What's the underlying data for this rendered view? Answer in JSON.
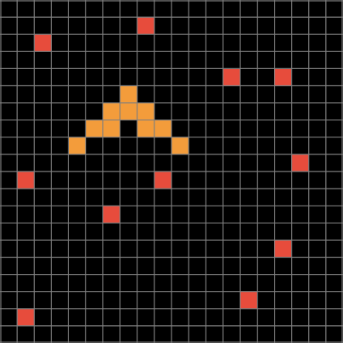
{
  "board": {
    "columns": 20,
    "rows": 20,
    "background_color": "#000000",
    "grid_line_color": "#7f7f7f",
    "colors": {
      "food": "#e74c3c",
      "player": "#f39c3b"
    }
  },
  "player_cells": [
    {
      "col": 7,
      "row": 5
    },
    {
      "col": 6,
      "row": 6
    },
    {
      "col": 7,
      "row": 6
    },
    {
      "col": 8,
      "row": 6
    },
    {
      "col": 5,
      "row": 7
    },
    {
      "col": 6,
      "row": 7
    },
    {
      "col": 8,
      "row": 7
    },
    {
      "col": 9,
      "row": 7
    },
    {
      "col": 4,
      "row": 8
    },
    {
      "col": 10,
      "row": 8
    }
  ],
  "food_cells": [
    {
      "col": 8,
      "row": 1
    },
    {
      "col": 2,
      "row": 2
    },
    {
      "col": 13,
      "row": 4
    },
    {
      "col": 16,
      "row": 4
    },
    {
      "col": 17,
      "row": 9
    },
    {
      "col": 1,
      "row": 10
    },
    {
      "col": 9,
      "row": 10
    },
    {
      "col": 6,
      "row": 12
    },
    {
      "col": 16,
      "row": 14
    },
    {
      "col": 14,
      "row": 17
    },
    {
      "col": 1,
      "row": 18
    }
  ]
}
